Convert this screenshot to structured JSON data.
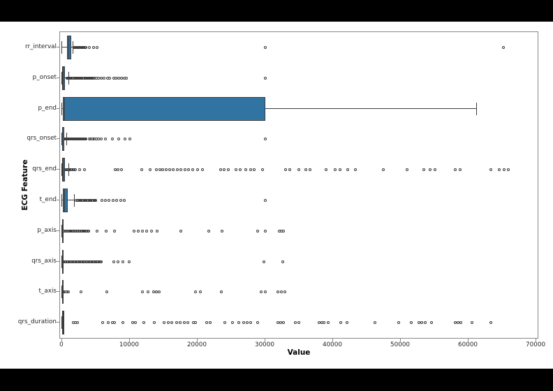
{
  "page": {
    "letterbox_color": "#000000",
    "canvas_color": "#ffffff",
    "spine_color": "#888888",
    "tick_label_color": "#262626"
  },
  "chart_data": {
    "type": "boxplot",
    "orientation": "horizontal",
    "title": "",
    "xlabel": "Value",
    "ylabel": "ECG Feature",
    "legend": "none",
    "grid": false,
    "xlim": [
      -300,
      70200
    ],
    "x_ticks": [
      0,
      10000,
      20000,
      30000,
      40000,
      50000,
      60000,
      70000
    ],
    "categories": [
      "rr_interval",
      "p_onset",
      "p_end",
      "qrs_onset",
      "qrs_end",
      "t_end",
      "p_axis",
      "qrs_axis",
      "t_axis",
      "qrs_duration"
    ],
    "box_color": "#3274a1",
    "line_color": "#3c3c3c",
    "boxes": [
      {
        "feature": "rr_interval",
        "whisker_lo": 0,
        "q1": 720,
        "median": 950,
        "q3": 1340,
        "whisker_hi": 1620,
        "outliers": [
          1750,
          1875,
          2000,
          2125,
          2250,
          2375,
          2500,
          2625,
          2750,
          2875,
          3000,
          3125,
          3250,
          3375,
          3500,
          4000,
          4600,
          5200,
          30000,
          65200
        ]
      },
      {
        "feature": "p_onset",
        "whisker_lo": 0,
        "q1": 40,
        "median": 160,
        "q3": 440,
        "whisker_hi": 1000,
        "outliers": [
          700,
          840,
          980,
          1120,
          1260,
          1400,
          1540,
          1680,
          1820,
          1960,
          2100,
          2240,
          2380,
          2520,
          2660,
          2800,
          2940,
          3080,
          3220,
          3360,
          3500,
          3640,
          3780,
          3920,
          4060,
          4200,
          4340,
          4480,
          4620,
          4760,
          5100,
          5400,
          5800,
          6200,
          6700,
          7000,
          7600,
          7900,
          8400,
          8800,
          9200,
          9500,
          30000
        ]
      },
      {
        "feature": "p_end",
        "whisker_lo": 0,
        "q1": 120,
        "median": 320,
        "q3": 30000,
        "whisker_hi": 61200,
        "outliers": []
      },
      {
        "feature": "qrs_onset",
        "whisker_lo": 0,
        "q1": 30,
        "median": 90,
        "q3": 280,
        "whisker_hi": 650,
        "outliers": [
          400,
          530,
          660,
          790,
          920,
          1050,
          1180,
          1310,
          1440,
          1570,
          1700,
          1830,
          1960,
          2090,
          2220,
          2350,
          2480,
          2610,
          2740,
          2870,
          3000,
          3130,
          3260,
          3390,
          3520,
          4000,
          4250,
          4500,
          4800,
          5100,
          5400,
          5800,
          6400,
          7400,
          8400,
          9300,
          10000,
          30000
        ]
      },
      {
        "feature": "qrs_end",
        "whisker_lo": 0,
        "q1": 60,
        "median": 180,
        "q3": 420,
        "whisker_hi": 950,
        "outliers": [
          500,
          660,
          820,
          980,
          1140,
          1300,
          1460,
          1620,
          1780,
          1940,
          2600,
          3300,
          7800,
          8300,
          8800,
          11800,
          13000,
          13900,
          14400,
          14900,
          15400,
          15900,
          16400,
          17000,
          17500,
          18200,
          18700,
          19300,
          20000,
          20700,
          23400,
          23900,
          24500,
          25700,
          26300,
          27100,
          27800,
          28400,
          29600,
          33000,
          33600,
          34900,
          36000,
          36600,
          39000,
          40300,
          41000,
          42200,
          43300,
          47400,
          50900,
          53400,
          54300,
          55000,
          58000,
          58800,
          63300,
          64500,
          65300,
          65900
        ]
      },
      {
        "feature": "t_end",
        "whisker_lo": 0,
        "q1": 150,
        "median": 400,
        "q3": 820,
        "whisker_hi": 1800,
        "outliers": [
          2100,
          2245,
          2390,
          2535,
          2680,
          2825,
          2970,
          3115,
          3260,
          3405,
          3550,
          3695,
          3840,
          3985,
          4130,
          4275,
          4420,
          4565,
          4710,
          4855,
          5000,
          5900,
          6400,
          6900,
          7500,
          8100,
          8700,
          9200,
          30000
        ]
      },
      {
        "feature": "p_axis",
        "whisker_lo": 0,
        "q1": 15,
        "median": 50,
        "q3": 85,
        "whisker_hi": 180,
        "outliers": [
          200,
          350,
          500,
          650,
          800,
          950,
          1100,
          1250,
          1400,
          1550,
          1700,
          1850,
          2000,
          2150,
          2300,
          2450,
          2600,
          2750,
          2900,
          3050,
          3200,
          3350,
          3500,
          3650,
          3800,
          3950,
          5200,
          6500,
          7700,
          10600,
          11200,
          11900,
          12500,
          13200,
          14000,
          17500,
          21700,
          23600,
          28900,
          30000,
          32100,
          32400,
          32700
        ]
      },
      {
        "feature": "qrs_axis",
        "whisker_lo": 0,
        "q1": 10,
        "median": 40,
        "q3": 90,
        "whisker_hi": 210,
        "outliers": [
          200,
          370,
          540,
          710,
          880,
          1050,
          1220,
          1390,
          1560,
          1730,
          1900,
          2070,
          2240,
          2410,
          2580,
          2750,
          2920,
          3090,
          3260,
          3430,
          3600,
          3770,
          3940,
          4110,
          4280,
          4450,
          4620,
          4790,
          4960,
          5130,
          5300,
          5470,
          5640,
          5810,
          7600,
          8300,
          9000,
          9900,
          29800,
          32600
        ]
      },
      {
        "feature": "t_axis",
        "whisker_lo": 0,
        "q1": 15,
        "median": 45,
        "q3": 80,
        "whisker_hi": 170,
        "outliers": [
          200,
          450,
          700,
          950,
          2800,
          6600,
          11900,
          12700,
          13500,
          13900,
          14300,
          19700,
          20400,
          23500,
          29400,
          30000,
          31900,
          32400,
          32900
        ]
      },
      {
        "feature": "qrs_duration",
        "whisker_lo": 0,
        "q1": 70,
        "median": 95,
        "q3": 120,
        "whisker_hi": 190,
        "outliers": [
          1650,
          1950,
          2300,
          6000,
          6800,
          7400,
          7700,
          9000,
          10400,
          10800,
          12100,
          13600,
          15100,
          15700,
          16200,
          16900,
          17400,
          18000,
          18600,
          19400,
          19700,
          21300,
          21900,
          24000,
          25200,
          26100,
          26800,
          27300,
          27800,
          28900,
          31900,
          32300,
          32700,
          34400,
          34900,
          37900,
          38300,
          38700,
          39300,
          41100,
          42100,
          46200,
          49700,
          51500,
          52700,
          53100,
          53600,
          54500,
          58000,
          58500,
          58900,
          60500,
          63300
        ]
      }
    ]
  }
}
